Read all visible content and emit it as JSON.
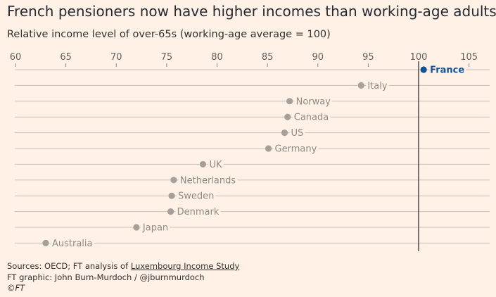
{
  "header": {
    "title": "French pensioners now have higher incomes than working-age adults",
    "subtitle": "Relative income level of over-65s (working-age average = 100)"
  },
  "chart_data": {
    "type": "scatter",
    "title": "French pensioners now have higher incomes than working-age adults",
    "subtitle": "Relative income level of over-65s (working-age average = 100)",
    "xlabel": "",
    "ylabel": "",
    "xlim": [
      60,
      107
    ],
    "xticks": [
      "60",
      "65",
      "70",
      "75",
      "80",
      "85",
      "90",
      "95",
      "100",
      "105"
    ],
    "reference_line": 100,
    "grid": "horizontal",
    "categories": [
      "France",
      "Italy",
      "Norway",
      "Canada",
      "US",
      "Germany",
      "UK",
      "Netherlands",
      "Sweden",
      "Denmark",
      "Japan",
      "Australia"
    ],
    "values": [
      100.5,
      94.3,
      87.2,
      87.0,
      86.7,
      85.1,
      78.6,
      75.7,
      75.5,
      75.4,
      72.0,
      63.0
    ],
    "highlight": "France",
    "colors": {
      "highlight": "#0f5499",
      "default": "#a5a09a",
      "reference": "#33302e"
    }
  },
  "footer": {
    "sources_prefix": "Sources: OECD; FT analysis of ",
    "sources_link": "Luxembourg Income Study",
    "credit": "FT graphic: John Burn-Murdoch / @jburnmurdoch",
    "copyright": "©FT"
  }
}
